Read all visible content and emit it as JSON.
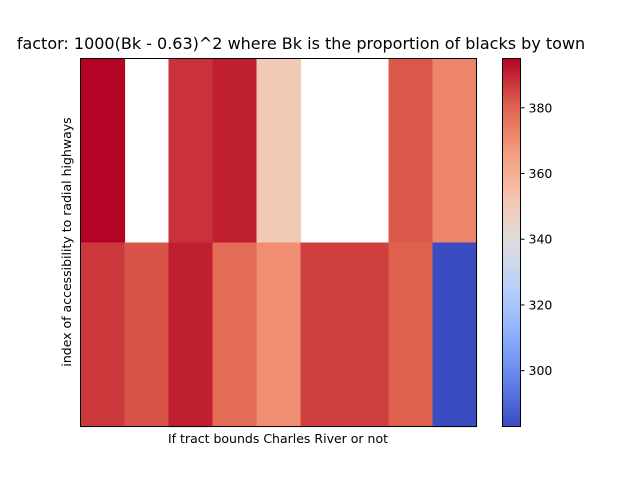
{
  "chart_data": {
    "type": "heatmap",
    "title": "factor: 1000(Bk - 0.63)^2 where Bk is the proportion of blacks by town",
    "xlabel": "If tract bounds Charles River or not",
    "ylabel": "index of accessibility to radial highways",
    "x_ticks": "none",
    "y_ticks": "none",
    "grid": "off",
    "colormap": "coolwarm",
    "color_range": [
      283,
      395
    ],
    "colorbar": {
      "placement": "right",
      "ticks": [
        300,
        320,
        340,
        360,
        380
      ],
      "tick_labels": [
        "300",
        "320",
        "340",
        "360",
        "380"
      ]
    },
    "rows": 2,
    "cols": 9,
    "values": [
      [
        395,
        null,
        388,
        391,
        350,
        null,
        null,
        382,
        372
      ],
      [
        387,
        383,
        391,
        378,
        370,
        386,
        386,
        381,
        283
      ]
    ]
  }
}
